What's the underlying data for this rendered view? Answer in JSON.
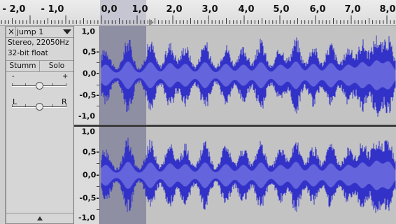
{
  "ruler": {
    "labels": [
      "- 2,0",
      "- 1,0",
      "0,0",
      "1,0",
      "2,0",
      "3,0",
      "4,0",
      "5,0",
      "6,0",
      "7,0",
      "8,0"
    ],
    "values": [
      -2,
      -1,
      0,
      1,
      2,
      3,
      4,
      5,
      6,
      7,
      8
    ]
  },
  "selection": {
    "start_s": 0.0,
    "end_s": 1.3
  },
  "track": {
    "close_glyph": "×",
    "name": "jump 1",
    "format_line": "Stereo, 22050Hz",
    "sample_format": "32-bit float",
    "mute_label": "Stumm",
    "solo_label": "Solo",
    "gain": {
      "minus_label": "-",
      "plus_label": "+",
      "level": 0.5
    },
    "pan": {
      "left_label": "L",
      "right_label": "R",
      "level": 0.5
    }
  },
  "channels": [
    {
      "scale": [
        "1,0",
        "0,5-",
        "0,0-",
        "-0,5-",
        "-1,0"
      ]
    },
    {
      "scale": [
        "1,0",
        "0,5-",
        "0,0-",
        "-0,5-",
        "-1,0"
      ]
    }
  ],
  "colors": {
    "waveform": "#3232c8",
    "waveform_rms": "#6464dc",
    "background": "#c3c3c3",
    "selection": "#8f8fa3"
  }
}
